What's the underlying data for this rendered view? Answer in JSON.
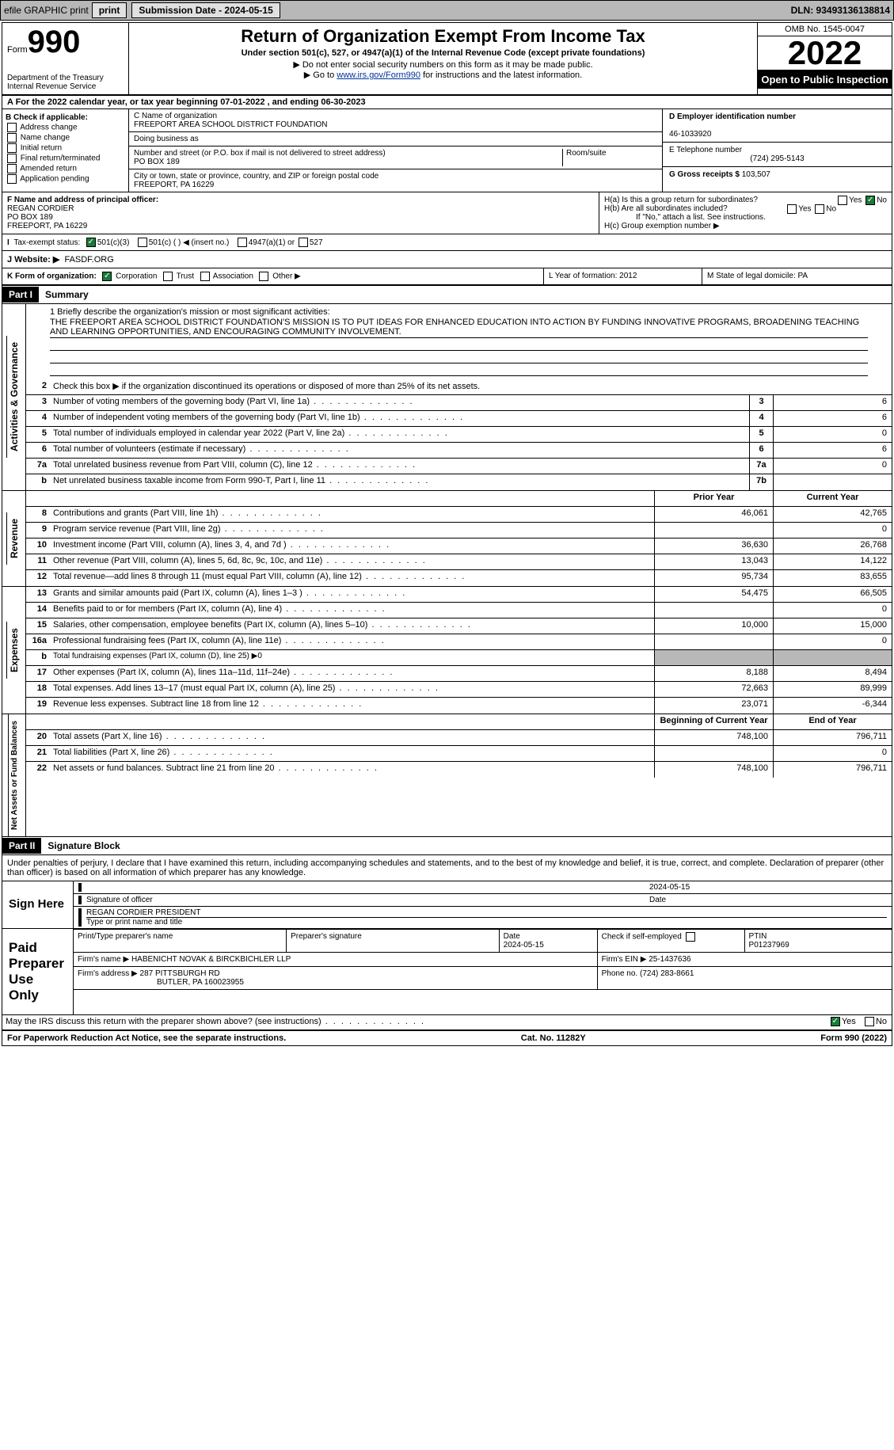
{
  "topbar": {
    "efile": "efile GRAPHIC print",
    "submission": "Submission Date - 2024-05-15",
    "dln": "DLN: 93493136138814"
  },
  "header": {
    "form_word": "Form",
    "form_num": "990",
    "dept": "Department of the Treasury\nInternal Revenue Service",
    "title": "Return of Organization Exempt From Income Tax",
    "sub1": "Under section 501(c), 527, or 4947(a)(1) of the Internal Revenue Code (except private foundations)",
    "sub2": "▶ Do not enter social security numbers on this form as it may be made public.",
    "sub3_pre": "▶ Go to ",
    "sub3_link": "www.irs.gov/Form990",
    "sub3_post": " for instructions and the latest information.",
    "omb": "OMB No. 1545-0047",
    "year": "2022",
    "open": "Open to Public Inspection"
  },
  "a": {
    "text": "A For the 2022 calendar year, or tax year beginning 07-01-2022   , and ending 06-30-2023"
  },
  "b": {
    "label": "B Check if applicable:",
    "items": [
      "Address change",
      "Name change",
      "Initial return",
      "Final return/terminated",
      "Amended return",
      "Application pending"
    ]
  },
  "c": {
    "name_lbl": "C Name of organization",
    "name": "FREEPORT AREA SCHOOL DISTRICT FOUNDATION",
    "dba": "Doing business as",
    "street_lbl": "Number and street (or P.O. box if mail is not delivered to street address)",
    "room_lbl": "Room/suite",
    "street": "PO BOX 189",
    "city_lbl": "City or town, state or province, country, and ZIP or foreign postal code",
    "city": "FREEPORT, PA  16229"
  },
  "d": {
    "lbl": "D Employer identification number",
    "val": "46-1033920"
  },
  "e": {
    "lbl": "E Telephone number",
    "val": "(724) 295-5143"
  },
  "g": {
    "lbl": "G Gross receipts $",
    "val": "103,507"
  },
  "f": {
    "lbl": "F Name and address of principal officer:",
    "name": "REGAN CORDIER",
    "addr": "PO BOX 189\nFREEPORT, PA  16229"
  },
  "h": {
    "a": "H(a)  Is this a group return for subordinates?",
    "a_yes": "Yes",
    "a_no": "No",
    "b": "H(b)  Are all subordinates included?",
    "b_yes": "Yes",
    "b_no": "No",
    "b_note": "If \"No,\" attach a list. See instructions.",
    "c": "H(c)  Group exemption number ▶"
  },
  "i": {
    "lbl": "Tax-exempt status:",
    "o1": "501(c)(3)",
    "o2": "501(c) (  ) ◀ (insert no.)",
    "o3": "4947(a)(1) or",
    "o4": "527"
  },
  "j": {
    "lbl": "J  Website: ▶",
    "val": "FASDF.ORG"
  },
  "k": {
    "lbl": "K Form of organization:",
    "o1": "Corporation",
    "o2": "Trust",
    "o3": "Association",
    "o4": "Other ▶",
    "l": "L Year of formation: 2012",
    "m": "M State of legal domicile: PA"
  },
  "part1": {
    "hdr": "Part I",
    "title": "Summary"
  },
  "mission": {
    "lbl": "1   Briefly describe the organization's mission or most significant activities:",
    "text": "THE FREEPORT AREA SCHOOL DISTRICT FOUNDATION'S MISSION IS TO PUT IDEAS FOR ENHANCED EDUCATION INTO ACTION BY FUNDING INNOVATIVE PROGRAMS, BROADENING TEACHING AND LEARNING OPPORTUNITIES, AND ENCOURAGING COMMUNITY INVOLVEMENT."
  },
  "gov": {
    "section": "Activities & Governance",
    "l2": "Check this box ▶     if the organization discontinued its operations or disposed of more than 25% of its net assets.",
    "lines": [
      {
        "n": "3",
        "t": "Number of voting members of the governing body (Part VI, line 1a)",
        "box": "3",
        "v": "6"
      },
      {
        "n": "4",
        "t": "Number of independent voting members of the governing body (Part VI, line 1b)",
        "box": "4",
        "v": "6"
      },
      {
        "n": "5",
        "t": "Total number of individuals employed in calendar year 2022 (Part V, line 2a)",
        "box": "5",
        "v": "0"
      },
      {
        "n": "6",
        "t": "Total number of volunteers (estimate if necessary)",
        "box": "6",
        "v": "6"
      },
      {
        "n": "7a",
        "t": "Total unrelated business revenue from Part VIII, column (C), line 12",
        "box": "7a",
        "v": "0"
      },
      {
        "n": "b",
        "t": "Net unrelated business taxable income from Form 990-T, Part I, line 11",
        "box": "7b",
        "v": ""
      }
    ]
  },
  "rev": {
    "section": "Revenue",
    "prior": "Prior Year",
    "current": "Current Year",
    "lines": [
      {
        "n": "8",
        "t": "Contributions and grants (Part VIII, line 1h)",
        "p": "46,061",
        "c": "42,765"
      },
      {
        "n": "9",
        "t": "Program service revenue (Part VIII, line 2g)",
        "p": "",
        "c": "0"
      },
      {
        "n": "10",
        "t": "Investment income (Part VIII, column (A), lines 3, 4, and 7d )",
        "p": "36,630",
        "c": "26,768"
      },
      {
        "n": "11",
        "t": "Other revenue (Part VIII, column (A), lines 5, 6d, 8c, 9c, 10c, and 11e)",
        "p": "13,043",
        "c": "14,122"
      },
      {
        "n": "12",
        "t": "Total revenue—add lines 8 through 11 (must equal Part VIII, column (A), line 12)",
        "p": "95,734",
        "c": "83,655"
      }
    ]
  },
  "exp": {
    "section": "Expenses",
    "lines": [
      {
        "n": "13",
        "t": "Grants and similar amounts paid (Part IX, column (A), lines 1–3 )",
        "p": "54,475",
        "c": "66,505"
      },
      {
        "n": "14",
        "t": "Benefits paid to or for members (Part IX, column (A), line 4)",
        "p": "",
        "c": "0"
      },
      {
        "n": "15",
        "t": "Salaries, other compensation, employee benefits (Part IX, column (A), lines 5–10)",
        "p": "10,000",
        "c": "15,000"
      },
      {
        "n": "16a",
        "t": "Professional fundraising fees (Part IX, column (A), line 11e)",
        "p": "",
        "c": "0"
      },
      {
        "n": "b",
        "t": "Total fundraising expenses (Part IX, column (D), line 25) ▶0",
        "grey": true
      },
      {
        "n": "17",
        "t": "Other expenses (Part IX, column (A), lines 11a–11d, 11f–24e)",
        "p": "8,188",
        "c": "8,494"
      },
      {
        "n": "18",
        "t": "Total expenses. Add lines 13–17 (must equal Part IX, column (A), line 25)",
        "p": "72,663",
        "c": "89,999"
      },
      {
        "n": "19",
        "t": "Revenue less expenses. Subtract line 18 from line 12",
        "p": "23,071",
        "c": "-6,344"
      }
    ]
  },
  "net": {
    "section": "Net Assets or Fund Balances",
    "begin": "Beginning of Current Year",
    "end": "End of Year",
    "lines": [
      {
        "n": "20",
        "t": "Total assets (Part X, line 16)",
        "p": "748,100",
        "c": "796,711"
      },
      {
        "n": "21",
        "t": "Total liabilities (Part X, line 26)",
        "p": "",
        "c": "0"
      },
      {
        "n": "22",
        "t": "Net assets or fund balances. Subtract line 21 from line 20",
        "p": "748,100",
        "c": "796,711"
      }
    ]
  },
  "part2": {
    "hdr": "Part II",
    "title": "Signature Block"
  },
  "sig": {
    "intro": "Under penalties of perjury, I declare that I have examined this return, including accompanying schedules and statements, and to the best of my knowledge and belief, it is true, correct, and complete. Declaration of preparer (other than officer) is based on all information of which preparer has any knowledge.",
    "sign_here": "Sign Here",
    "date": "2024-05-15",
    "sig_of": "Signature of officer",
    "date_lbl": "Date",
    "name": "REGAN CORDIER  PRESIDENT",
    "name_lbl": "Type or print name and title"
  },
  "prep": {
    "title": "Paid Preparer Use Only",
    "h1": "Print/Type preparer's name",
    "h2": "Preparer's signature",
    "h3": "Date",
    "h3v": "2024-05-15",
    "h4": "Check        if self-employed",
    "h5": "PTIN",
    "h5v": "P01237969",
    "firm_lbl": "Firm's name    ▶",
    "firm": "HABENICHT NOVAK & BIRCKBICHLER LLP",
    "ein_lbl": "Firm's EIN ▶",
    "ein": "25-1437636",
    "addr_lbl": "Firm's address ▶",
    "addr1": "287 PITTSBURGH RD",
    "addr2": "BUTLER, PA  160023955",
    "phone_lbl": "Phone no.",
    "phone": "(724) 283-8661"
  },
  "discuss": {
    "q": "May the IRS discuss this return with the preparer shown above? (see instructions)",
    "yes": "Yes",
    "no": "No"
  },
  "footer": {
    "l": "For Paperwork Reduction Act Notice, see the separate instructions.",
    "m": "Cat. No. 11282Y",
    "r": "Form 990 (2022)"
  }
}
